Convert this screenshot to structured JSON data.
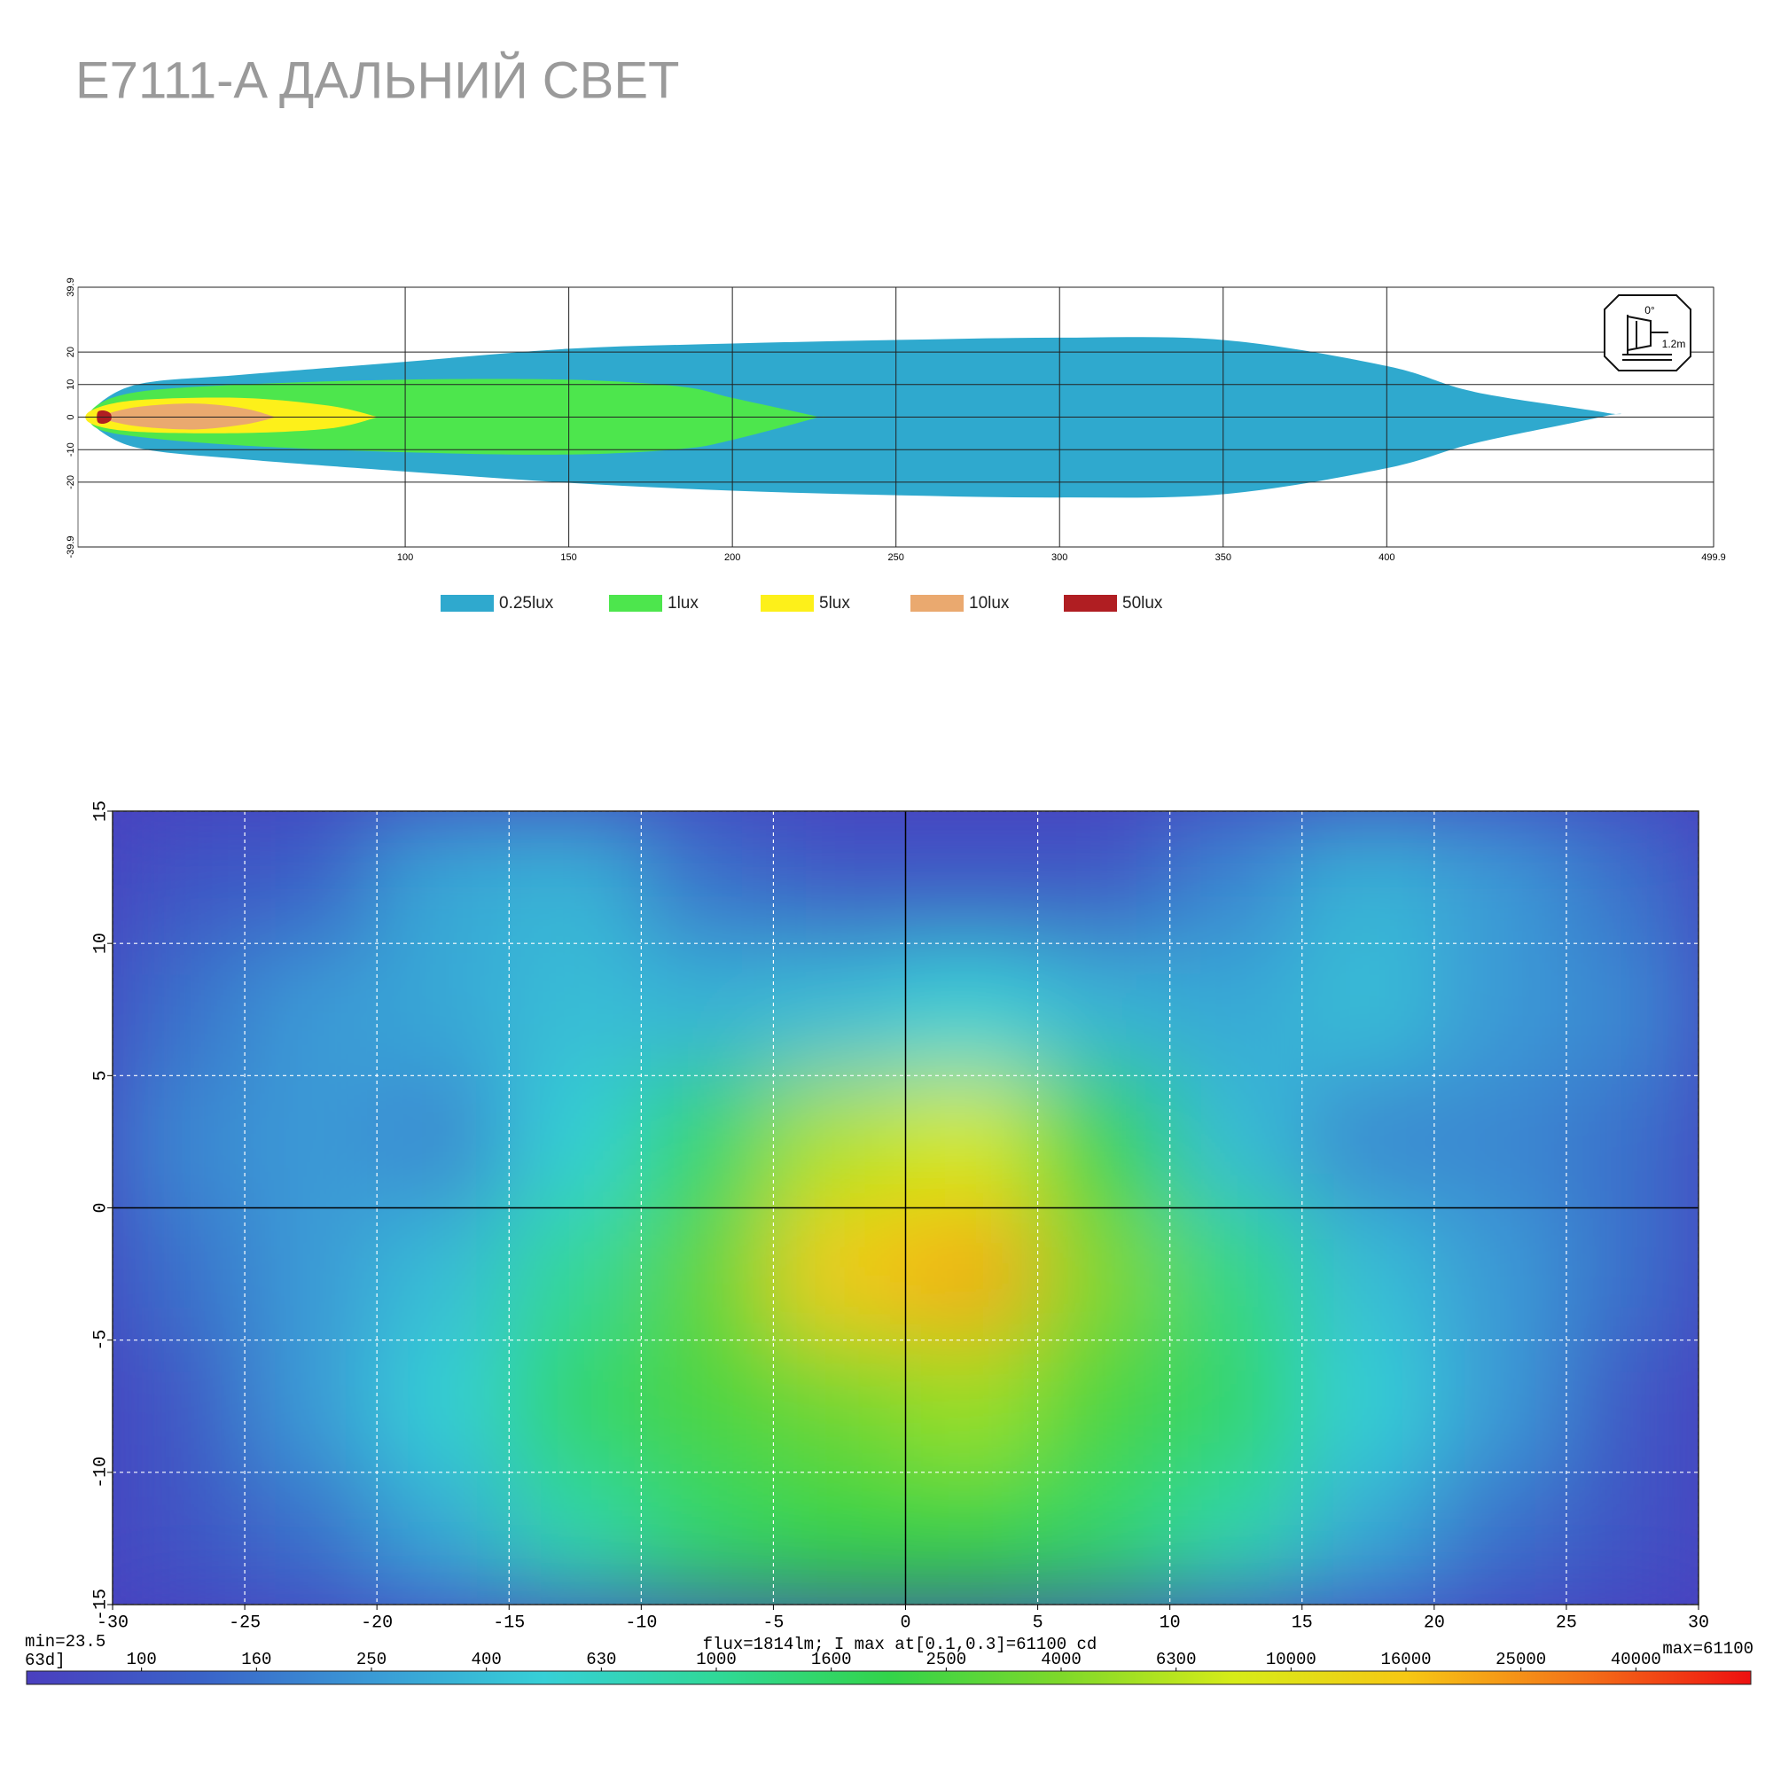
{
  "title": "E7111-A  ДАЛЬНИЙ СВЕТ",
  "chart_data": [
    {
      "type": "isolux",
      "xlim": [
        0,
        499.9
      ],
      "ylim": [
        -39.9,
        39.9
      ],
      "xticks": [
        100,
        150,
        200,
        250,
        300,
        350,
        400,
        499.9
      ],
      "yticks": [
        -39.9,
        -20,
        -10,
        0,
        10,
        20,
        39.9
      ],
      "grid": true,
      "mounting": {
        "angle": "0°",
        "height": "1.2m"
      },
      "series": [
        {
          "name": "0.25lux",
          "color": "#2fa9ce",
          "x": [
            4,
            18,
            50,
            100,
            150,
            200,
            250,
            300,
            350,
            400,
            427,
            466.7
          ],
          "upper": [
            2,
            10,
            13,
            17,
            21,
            22.6,
            23.7,
            24.4,
            23.7,
            15.7,
            7.7,
            1.4
          ],
          "lower": [
            -2,
            -9.4,
            -12.9,
            -16.7,
            -20.2,
            -22.6,
            -24,
            -24.7,
            -23.7,
            -15.7,
            -8,
            0.3
          ]
        },
        {
          "name": "1lux",
          "color": "#4de64d",
          "x": [
            5,
            18,
            50,
            100,
            150,
            184,
            200,
            225.3
          ],
          "upper": [
            3,
            7.7,
            10,
            11.5,
            11.5,
            9.4,
            5.9,
            0.3
          ],
          "lower": [
            -3,
            -6,
            -8.7,
            -10.8,
            -11.5,
            -9.8,
            -7,
            -0.3
          ]
        },
        {
          "name": "5lux",
          "color": "#fdf01a",
          "x": [
            4,
            18,
            50,
            76.7,
            90.6
          ],
          "upper": [
            2,
            5.2,
            5.9,
            3.5,
            0.3
          ],
          "lower": [
            -2,
            -4.5,
            -4.9,
            -3.5,
            -0.3
          ]
        },
        {
          "name": "10lux",
          "color": "#eaa96f",
          "x": [
            7.3,
            18,
            35,
            50,
            59.4
          ],
          "upper": [
            0.5,
            3.1,
            4.2,
            2.8,
            0.3
          ],
          "lower": [
            -0.5,
            -2.8,
            -3.8,
            -2.4,
            -0.3
          ]
        },
        {
          "name": "50lux",
          "color": "#b01e22",
          "x": [
            6,
            8,
            10
          ],
          "upper": [
            1.5,
            2,
            1
          ],
          "lower": [
            -1.5,
            -2,
            -1
          ]
        }
      ]
    },
    {
      "type": "heatmap",
      "xlim": [
        -30,
        30
      ],
      "ylim": [
        -15,
        15
      ],
      "xticks": [
        -30,
        -25,
        -20,
        -15,
        -10,
        -5,
        0,
        5,
        10,
        15,
        20,
        25,
        30
      ],
      "yticks": [
        -15,
        -10,
        -5,
        0,
        5,
        10,
        15
      ],
      "grid": true,
      "x": [
        -27.5,
        -22.5,
        -17.5,
        -12.5,
        -7.5,
        -2.5,
        2.5,
        7.5,
        12.5,
        17.5,
        22.5,
        27.5
      ],
      "y": [
        12.5,
        7.5,
        2.5,
        -2.5,
        -7.5,
        -12.5
      ],
      "z": [
        [
          80,
          120,
          300,
          350,
          150,
          100,
          90,
          100,
          200,
          350,
          250,
          150
        ],
        [
          150,
          250,
          300,
          400,
          350,
          400,
          500,
          350,
          300,
          400,
          250,
          200
        ],
        [
          200,
          250,
          200,
          500,
          1500,
          6000,
          8000,
          2000,
          400,
          200,
          200,
          150
        ],
        [
          150,
          250,
          400,
          1000,
          3000,
          15000,
          20000,
          4000,
          1200,
          400,
          250,
          150
        ],
        [
          100,
          250,
          500,
          1500,
          2500,
          3500,
          5000,
          2500,
          1500,
          500,
          250,
          100
        ],
        [
          80,
          150,
          300,
          800,
          1500,
          2000,
          2000,
          1500,
          800,
          300,
          150,
          80
        ]
      ],
      "note": "flux=1814lm; I max at[0.1,0.3]=61100 cd",
      "colorbar": {
        "min": {
          "value": 23.5,
          "label": "min=23.5"
        },
        "max": {
          "value": 61100,
          "label": "max=61100"
        },
        "fragment": "63d]",
        "ticks": [
          100,
          160,
          250,
          400,
          630,
          1000,
          1600,
          2500,
          4000,
          6300,
          10000,
          16000,
          25000,
          40000
        ],
        "colors": [
          "#4a3fbf",
          "#3a62c8",
          "#3a9ad6",
          "#36d0d6",
          "#30d898",
          "#32d44a",
          "#7ed82a",
          "#d6ec18",
          "#f6c814",
          "#f47418",
          "#ee1010"
        ]
      }
    }
  ]
}
